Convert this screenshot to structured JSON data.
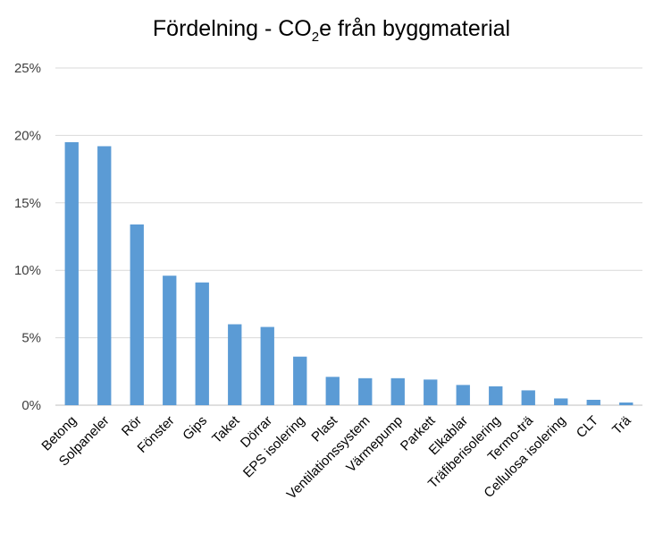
{
  "title": {
    "prefix": "Fördelning - CO",
    "subscript": "2",
    "suffix": "e från byggmaterial"
  },
  "chart_data": {
    "type": "bar",
    "title": "Fördelning - CO2e från byggmaterial",
    "categories": [
      "Betong",
      "Solpaneler",
      "Rör",
      "Fönster",
      "Gips",
      "Taket",
      "Dörrar",
      "EPS isolering",
      "Plast",
      "Ventilationssystem",
      "Värmepump",
      "Parkett",
      "Elkablar",
      "Träfiberisolering",
      "Termo-trä",
      "Cellulosa isolering",
      "CLT",
      "Trä"
    ],
    "series": [
      {
        "values": [
          19.5,
          19.2,
          13.4,
          9.6,
          9.1,
          6.0,
          5.8,
          3.6,
          2.1,
          2.0,
          2.0,
          1.9,
          1.5,
          1.4,
          1.1,
          0.5,
          0.4,
          0.2
        ]
      }
    ],
    "ylim": [
      0,
      25
    ],
    "y_ticks": [
      "0%",
      "5%",
      "10%",
      "15%",
      "20%",
      "25%"
    ],
    "y_tick_values": [
      0,
      5,
      10,
      15,
      20,
      25
    ],
    "grid": true,
    "legend": "none",
    "bar_color": "#5B9BD5",
    "grid_color": "#D9D9D9"
  }
}
